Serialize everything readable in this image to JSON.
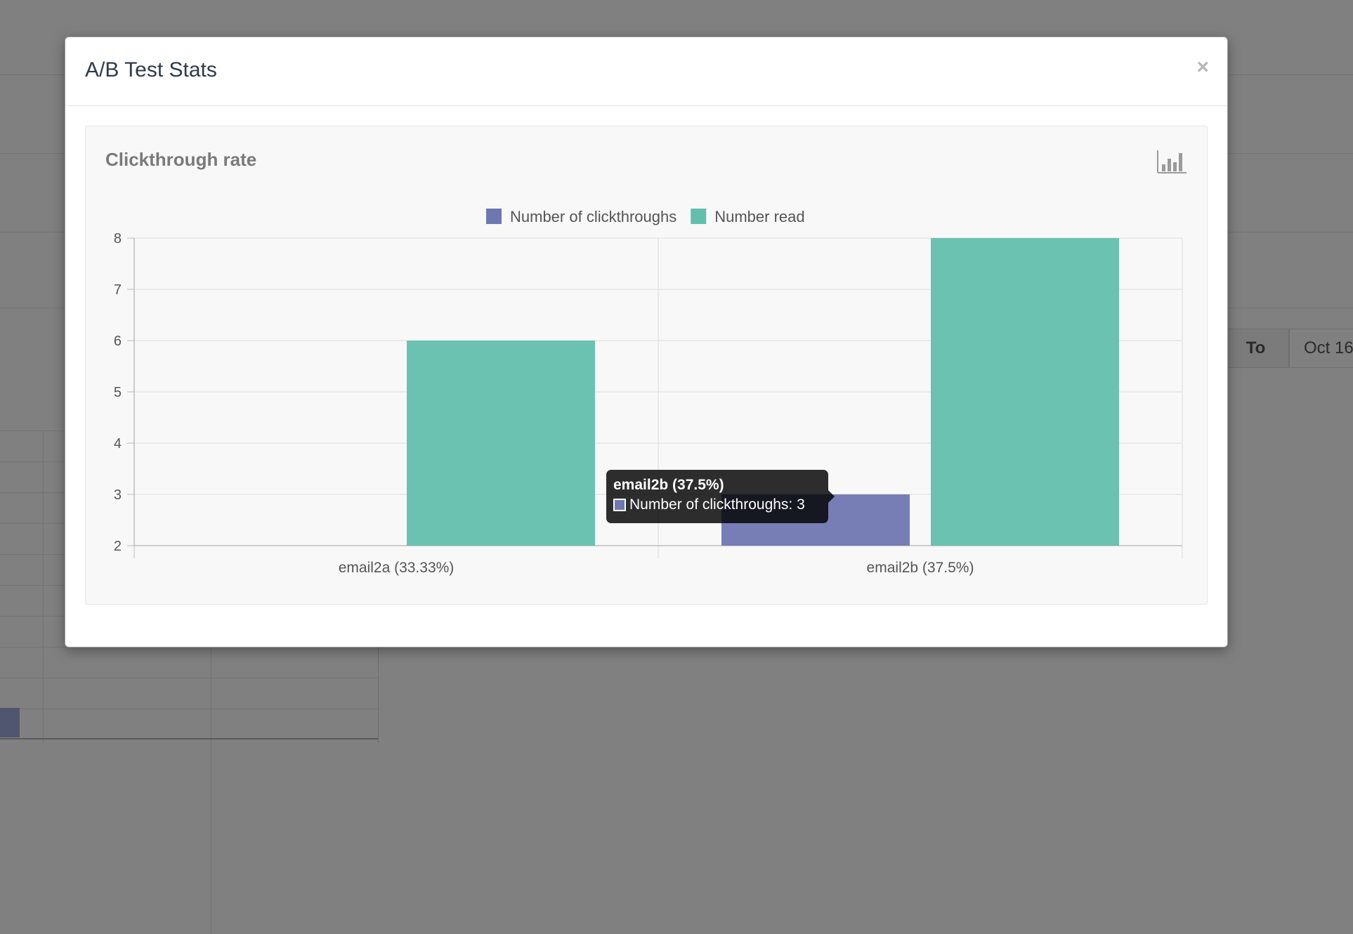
{
  "background": {
    "filter_to_label": "To",
    "filter_to_value": "Oct 16"
  },
  "modal": {
    "title": "A/B Test Stats",
    "close_label": "×"
  },
  "panel": {
    "title": "Clickthrough rate",
    "icon": "bar-chart-icon"
  },
  "colors": {
    "clickthroughs": "#6f77b1",
    "read": "#63bfad"
  },
  "chart_data": {
    "type": "bar",
    "title": "Clickthrough rate",
    "categories": [
      "email2a (33.33%)",
      "email2b (37.5%)"
    ],
    "series": [
      {
        "name": "Number of clickthroughs",
        "values": [
          2,
          3
        ]
      },
      {
        "name": "Number read",
        "values": [
          6,
          8
        ]
      }
    ],
    "ylim": [
      2,
      8
    ],
    "yticks": [
      2,
      3,
      4,
      5,
      6,
      7,
      8
    ],
    "legend": "top-center",
    "grid": true
  },
  "tooltip": {
    "title": "email2b (37.5%)",
    "line": "Number of clickthroughs: 3"
  }
}
